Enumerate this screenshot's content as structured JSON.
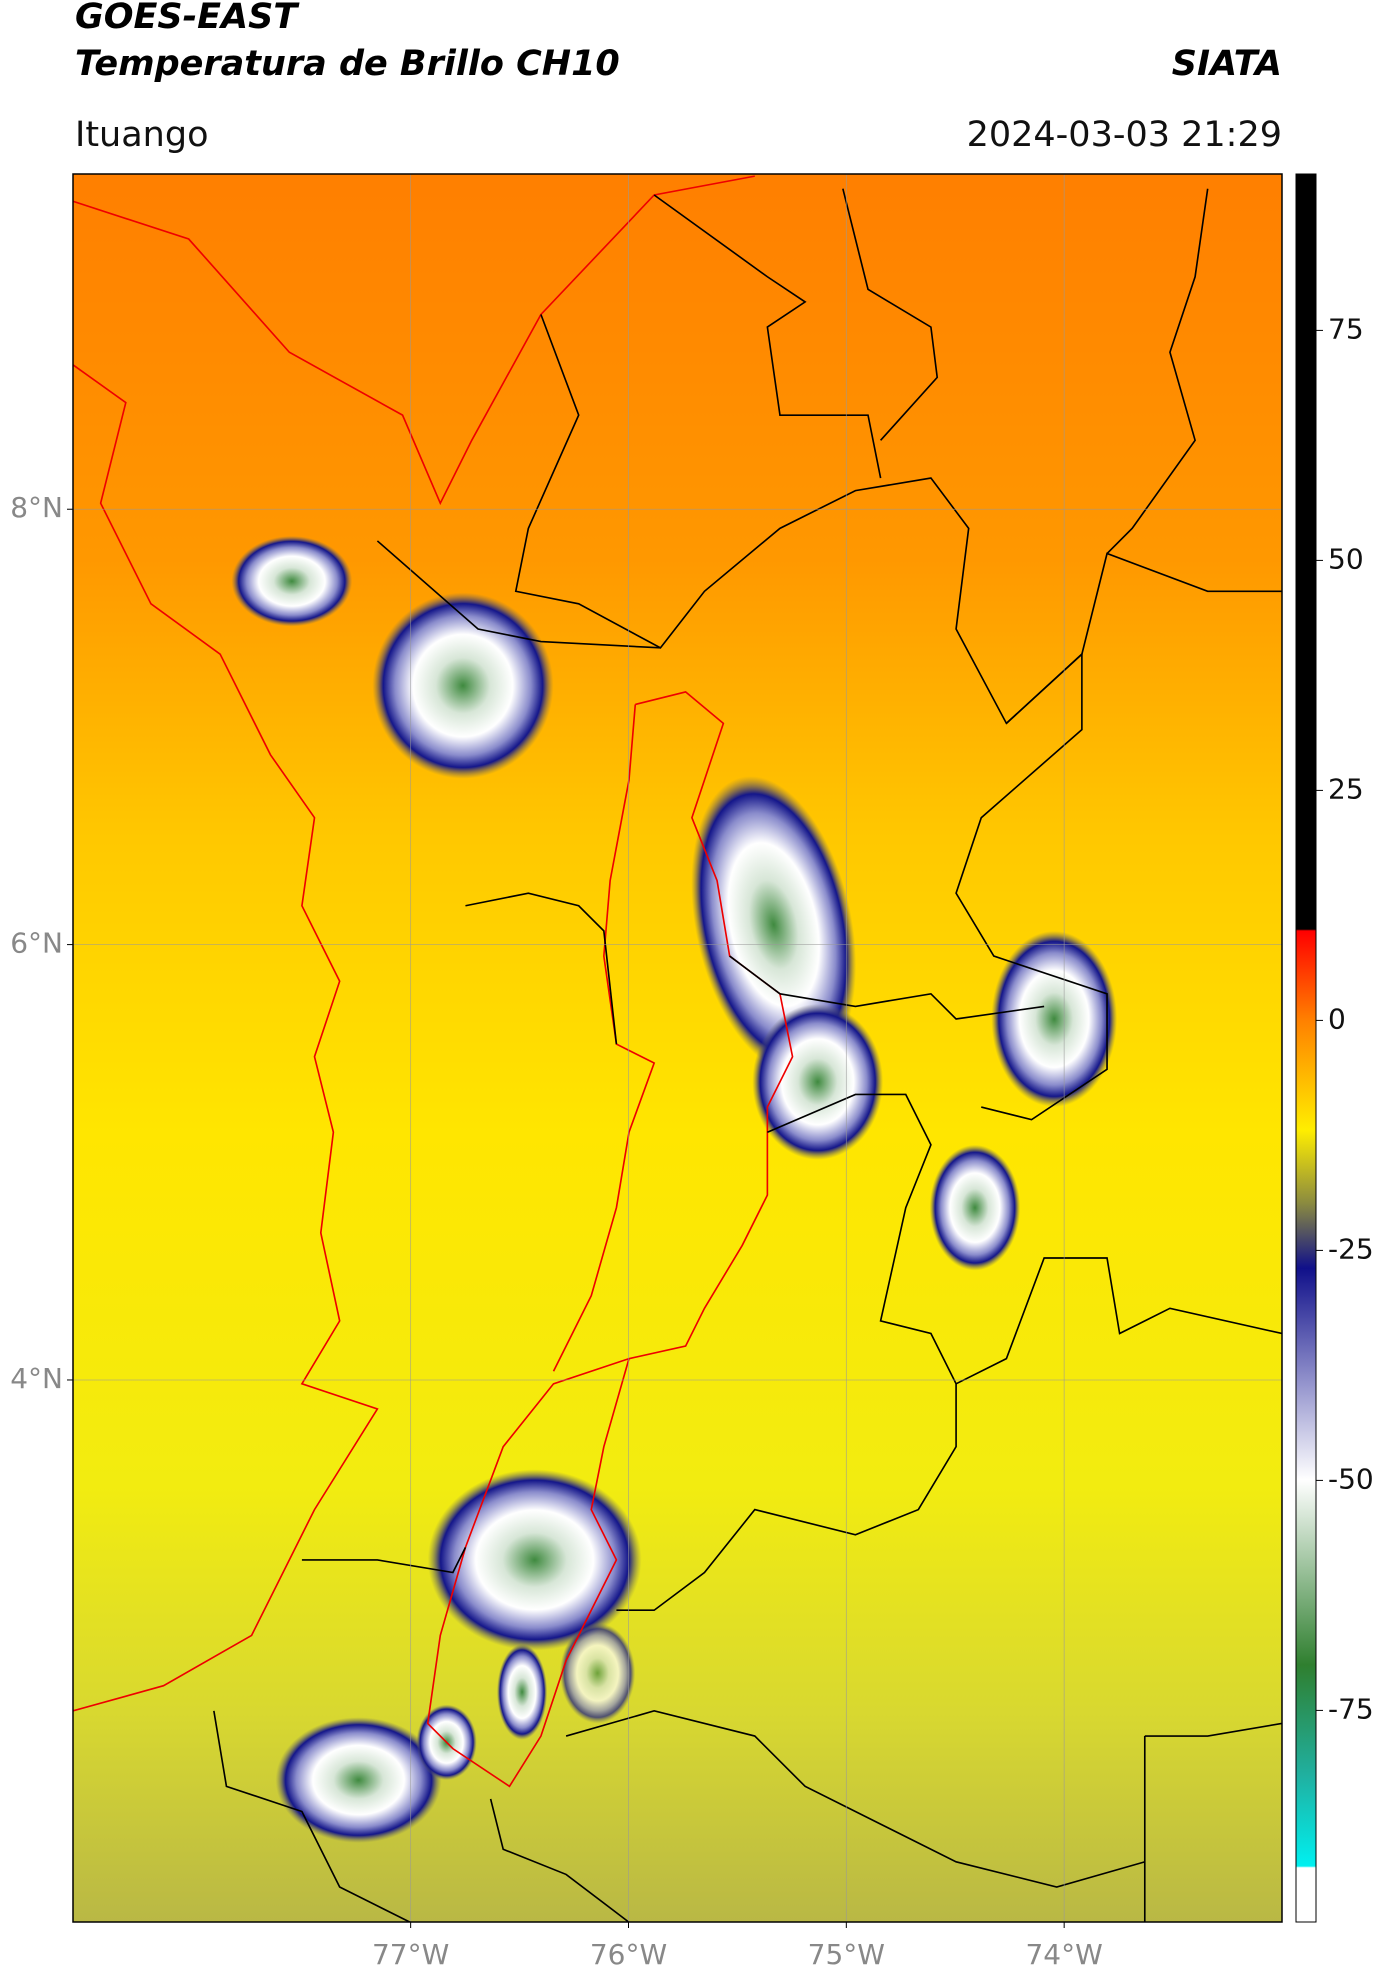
{
  "header": {
    "title": "GOES-EAST",
    "subtitle": "Temperatura de Brillo CH10",
    "source": "SIATA",
    "location": "Ituango",
    "datetime": "2024-03-03 21:29"
  },
  "map": {
    "lonlim": [
      -78.55,
      -73.0
    ],
    "latlim": [
      1.51,
      9.54
    ],
    "xticks": [
      {
        "value": -77,
        "label": "77°W"
      },
      {
        "value": -76,
        "label": "76°W"
      },
      {
        "value": -75,
        "label": "75°W"
      },
      {
        "value": -74,
        "label": "74°W"
      }
    ],
    "yticks": [
      {
        "value": 8,
        "label": "8°N"
      },
      {
        "value": 6,
        "label": "6°N"
      },
      {
        "value": 4,
        "label": "4°N"
      }
    ],
    "grid": true
  },
  "colorbar": {
    "lim": [
      -98,
      92
    ],
    "ticks": [
      75,
      50,
      25,
      0,
      -25,
      -50,
      -75
    ]
  }
}
